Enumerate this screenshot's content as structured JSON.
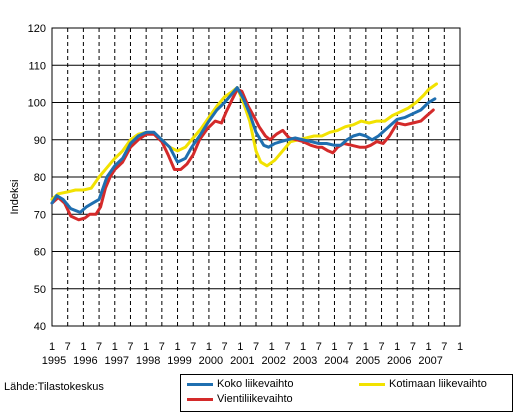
{
  "source_label": "Lähde:Tilastokeskus",
  "colors": {
    "koko": "#1f6fb0",
    "kotimaa": "#f2e200",
    "vienti": "#d42a2a",
    "grid": "#000000"
  },
  "chart_data": {
    "type": "line",
    "ylabel": "Indeksi",
    "ylim": [
      40,
      120
    ],
    "yticks": [
      40,
      50,
      60,
      70,
      80,
      90,
      100,
      110,
      120
    ],
    "xlim": [
      1995.0,
      2008.0
    ],
    "x_month_labels": [
      "1",
      "7",
      "1",
      "7",
      "1",
      "7",
      "1",
      "7",
      "1",
      "7",
      "1",
      "7",
      "1",
      "7",
      "1",
      "7",
      "1",
      "7",
      "1",
      "7",
      "1",
      "7",
      "1",
      "7",
      "1",
      "7",
      "1"
    ],
    "x_year_labels": [
      "1995",
      "1996",
      "1997",
      "1998",
      "1999",
      "2000",
      "2001",
      "2002",
      "2003",
      "2004",
      "2005",
      "2006",
      "2007"
    ],
    "legend_placement": "bottom-right",
    "grid": "horizontal solid, vertical dashed",
    "series": [
      {
        "name": "Koko liikevaihto",
        "color_key": "koko",
        "points": [
          [
            1995.0,
            73
          ],
          [
            1995.15,
            75
          ],
          [
            1995.35,
            74
          ],
          [
            1995.6,
            71.5
          ],
          [
            1995.9,
            70.5
          ],
          [
            1996.1,
            72
          ],
          [
            1996.3,
            73
          ],
          [
            1996.5,
            74
          ],
          [
            1996.75,
            80
          ],
          [
            1997.0,
            83
          ],
          [
            1997.25,
            85
          ],
          [
            1997.5,
            89
          ],
          [
            1997.75,
            91
          ],
          [
            1998.0,
            92
          ],
          [
            1998.25,
            92
          ],
          [
            1998.5,
            90
          ],
          [
            1998.75,
            88
          ],
          [
            1999.0,
            84
          ],
          [
            1999.25,
            85
          ],
          [
            1999.45,
            88
          ],
          [
            1999.7,
            91
          ],
          [
            2000.0,
            95
          ],
          [
            2000.25,
            98
          ],
          [
            2000.5,
            100
          ],
          [
            2000.75,
            102.5
          ],
          [
            2000.9,
            104
          ],
          [
            2001.1,
            101
          ],
          [
            2001.3,
            97
          ],
          [
            2001.5,
            92
          ],
          [
            2001.75,
            88.5
          ],
          [
            2001.9,
            88
          ],
          [
            2002.1,
            89
          ],
          [
            2002.3,
            89.5
          ],
          [
            2002.5,
            90
          ],
          [
            2002.75,
            90.5
          ],
          [
            2003.0,
            90
          ],
          [
            2003.25,
            89.5
          ],
          [
            2003.5,
            89
          ],
          [
            2003.75,
            89
          ],
          [
            2004.0,
            88.5
          ],
          [
            2004.2,
            88.5
          ],
          [
            2004.4,
            90
          ],
          [
            2004.6,
            91
          ],
          [
            2004.8,
            91.5
          ],
          [
            2005.0,
            91
          ],
          [
            2005.2,
            90
          ],
          [
            2005.4,
            91
          ],
          [
            2005.6,
            92.5
          ],
          [
            2005.8,
            94
          ],
          [
            2006.0,
            95.5
          ],
          [
            2006.25,
            96
          ],
          [
            2006.5,
            97
          ],
          [
            2006.75,
            98
          ],
          [
            2007.0,
            100
          ],
          [
            2007.2,
            101
          ]
        ]
      },
      {
        "name": "Kotimaan liikevaihto",
        "color_key": "kotimaa",
        "points": [
          [
            1995.0,
            74
          ],
          [
            1995.2,
            75.5
          ],
          [
            1995.5,
            76
          ],
          [
            1995.75,
            76.5
          ],
          [
            1996.0,
            76.5
          ],
          [
            1996.25,
            77
          ],
          [
            1996.5,
            80
          ],
          [
            1996.75,
            82.5
          ],
          [
            1997.0,
            85
          ],
          [
            1997.25,
            87
          ],
          [
            1997.5,
            90
          ],
          [
            1997.75,
            91.5
          ],
          [
            1998.0,
            92
          ],
          [
            1998.25,
            91.5
          ],
          [
            1998.5,
            90
          ],
          [
            1998.75,
            88
          ],
          [
            1999.0,
            87
          ],
          [
            1999.25,
            88
          ],
          [
            1999.5,
            90.5
          ],
          [
            1999.75,
            93
          ],
          [
            2000.0,
            96
          ],
          [
            2000.25,
            99
          ],
          [
            2000.5,
            101.5
          ],
          [
            2000.75,
            103
          ],
          [
            2000.9,
            104
          ],
          [
            2001.1,
            100
          ],
          [
            2001.3,
            95
          ],
          [
            2001.5,
            87
          ],
          [
            2001.65,
            84
          ],
          [
            2001.85,
            83
          ],
          [
            2002.1,
            84.5
          ],
          [
            2002.35,
            87
          ],
          [
            2002.6,
            89.5
          ],
          [
            2002.85,
            90
          ],
          [
            2003.1,
            90.5
          ],
          [
            2003.35,
            91
          ],
          [
            2003.6,
            91
          ],
          [
            2003.85,
            92
          ],
          [
            2004.1,
            92.5
          ],
          [
            2004.35,
            93.5
          ],
          [
            2004.6,
            94
          ],
          [
            2004.85,
            95
          ],
          [
            2005.1,
            94.5
          ],
          [
            2005.35,
            95
          ],
          [
            2005.6,
            95
          ],
          [
            2005.85,
            96.5
          ],
          [
            2006.1,
            97.5
          ],
          [
            2006.35,
            98.5
          ],
          [
            2006.6,
            100
          ],
          [
            2006.85,
            102
          ],
          [
            2007.0,
            103.5
          ],
          [
            2007.25,
            105
          ]
        ]
      },
      {
        "name": "Vientiliikevaihto",
        "color_key": "vienti",
        "points": [
          [
            1995.0,
            73
          ],
          [
            1995.2,
            74.5
          ],
          [
            1995.4,
            73
          ],
          [
            1995.6,
            69.5
          ],
          [
            1995.85,
            68.5
          ],
          [
            1996.05,
            69
          ],
          [
            1996.2,
            70
          ],
          [
            1996.4,
            70
          ],
          [
            1996.55,
            72
          ],
          [
            1996.7,
            77
          ],
          [
            1996.85,
            80
          ],
          [
            1997.0,
            82
          ],
          [
            1997.25,
            84
          ],
          [
            1997.5,
            88
          ],
          [
            1997.75,
            90
          ],
          [
            1998.0,
            91.5
          ],
          [
            1998.25,
            91.5
          ],
          [
            1998.5,
            89.5
          ],
          [
            1998.7,
            86
          ],
          [
            1998.9,
            82
          ],
          [
            1999.1,
            82
          ],
          [
            1999.3,
            83.5
          ],
          [
            1999.5,
            86
          ],
          [
            1999.7,
            90
          ],
          [
            1999.95,
            93
          ],
          [
            2000.2,
            95
          ],
          [
            2000.4,
            94.5
          ],
          [
            2000.55,
            97.5
          ],
          [
            2000.75,
            101
          ],
          [
            2000.9,
            103.5
          ],
          [
            2001.05,
            103
          ],
          [
            2001.25,
            99
          ],
          [
            2001.45,
            96
          ],
          [
            2001.6,
            93.5
          ],
          [
            2001.8,
            91
          ],
          [
            2001.95,
            90
          ],
          [
            2002.15,
            91.5
          ],
          [
            2002.35,
            92.5
          ],
          [
            2002.55,
            90.5
          ],
          [
            2002.8,
            90
          ],
          [
            2003.0,
            89.5
          ],
          [
            2003.25,
            88.5
          ],
          [
            2003.45,
            88
          ],
          [
            2003.6,
            88
          ],
          [
            2003.8,
            87
          ],
          [
            2003.95,
            86.5
          ],
          [
            2004.1,
            88
          ],
          [
            2004.3,
            89
          ],
          [
            2004.55,
            88.5
          ],
          [
            2004.8,
            88
          ],
          [
            2005.0,
            88
          ],
          [
            2005.15,
            88.5
          ],
          [
            2005.35,
            89.5
          ],
          [
            2005.55,
            89
          ],
          [
            2005.75,
            91
          ],
          [
            2006.0,
            94.5
          ],
          [
            2006.25,
            94
          ],
          [
            2006.5,
            94.5
          ],
          [
            2006.75,
            95
          ],
          [
            2006.95,
            96.5
          ],
          [
            2007.15,
            98
          ]
        ]
      }
    ]
  }
}
